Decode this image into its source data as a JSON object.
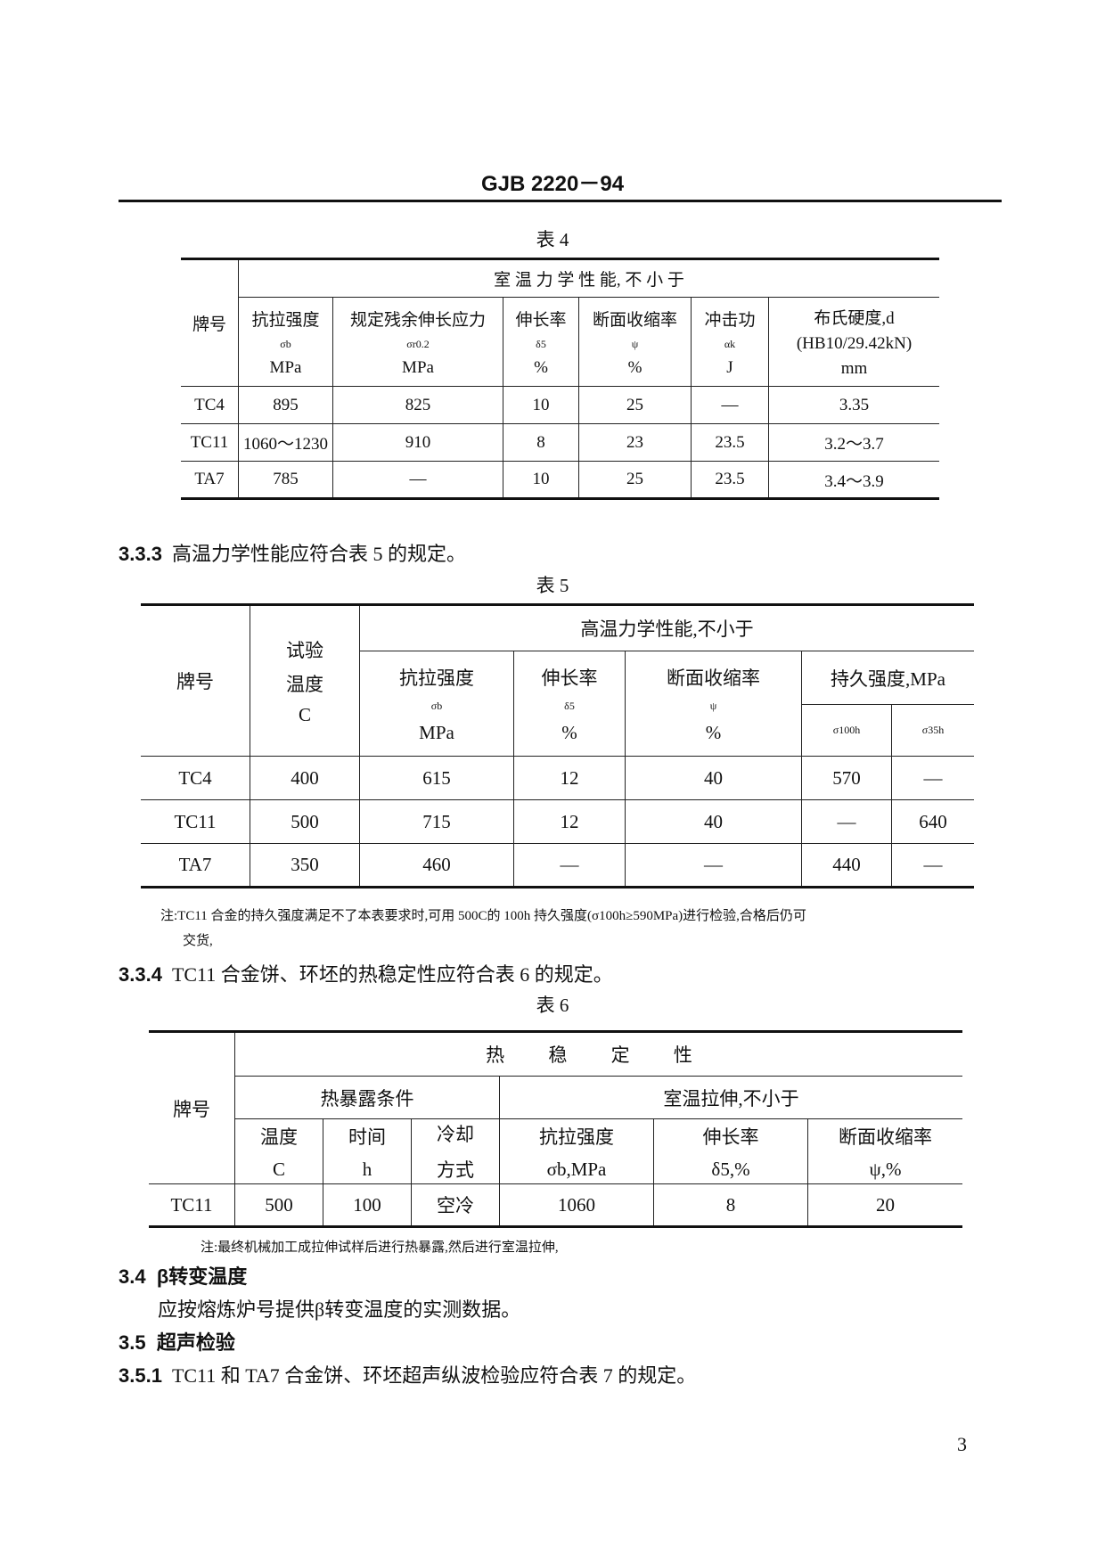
{
  "header": {
    "doc_code": "GJB 2220－94"
  },
  "table4": {
    "caption": "表 4",
    "col_grade": "牌号",
    "group": "室 温 力 学 性 能, 不 小 于",
    "columns": [
      {
        "name": "抗拉强度",
        "symbol": "σb",
        "unit": "MPa"
      },
      {
        "name": "规定残余伸长应力",
        "symbol": "σr0.2",
        "unit": "MPa"
      },
      {
        "name": "伸长率",
        "symbol": "δ5",
        "unit": "%"
      },
      {
        "name": "断面收缩率",
        "symbol": "ψ",
        "unit": "%"
      },
      {
        "name": "冲击功",
        "symbol": "αk",
        "unit": "J"
      },
      {
        "name": "布氏硬度,d",
        "symbol": "(HB10/29.42kN)",
        "unit": "mm"
      }
    ],
    "rows": [
      [
        "TC4",
        "895",
        "825",
        "10",
        "25",
        "—",
        "3.35"
      ],
      [
        "TC11",
        "1060～1230",
        "910",
        "8",
        "23",
        "23.5",
        "3.2～3.7"
      ],
      [
        "TA7",
        "785",
        "—",
        "10",
        "25",
        "23.5",
        "3.4～3.9"
      ]
    ]
  },
  "s333": {
    "num": "3.3.3",
    "text": "高温力学性能应符合表 5 的规定。"
  },
  "table5": {
    "caption": "表 5",
    "col_grade": "牌号",
    "col_temp": [
      "试验",
      "温度",
      "C"
    ],
    "group": "高温力学性能,不小于",
    "columns": [
      {
        "name": "抗拉强度",
        "symbol": "σb",
        "unit": "MPa"
      },
      {
        "name": "伸长率",
        "symbol": "δ5",
        "unit": "%"
      },
      {
        "name": "断面收缩率",
        "symbol": "ψ",
        "unit": "%"
      }
    ],
    "endurance": {
      "name": "持久强度,MPa",
      "sub": [
        "σ100h",
        "σ35h"
      ]
    },
    "rows": [
      [
        "TC4",
        "400",
        "615",
        "12",
        "40",
        "570",
        "—"
      ],
      [
        "TC11",
        "500",
        "715",
        "12",
        "40",
        "—",
        "640"
      ],
      [
        "TA7",
        "350",
        "460",
        "—",
        "—",
        "440",
        "—"
      ]
    ],
    "note_line1": "注:TC11 合金的持久强度满足不了本表要求时,可用 500C的 100h 持久强度(σ100h≥590MPa)进行检验,合格后仍可",
    "note_line2": "交货,"
  },
  "s334": {
    "num": "3.3.4",
    "text": "TC11 合金饼、环坯的热稳定性应符合表 6 的规定。"
  },
  "table6": {
    "caption": "表 6",
    "col_grade": "牌号",
    "group": "热 稳 定 性",
    "exposure": {
      "name": "热暴露条件",
      "cols": [
        [
          "温度",
          "C"
        ],
        [
          "时间",
          "h"
        ],
        [
          "冷却",
          "方式"
        ]
      ]
    },
    "tensile": {
      "name": "室温拉伸,不小于",
      "cols": [
        [
          "抗拉强度",
          "σb,MPa"
        ],
        [
          "伸长率",
          "δ5,%"
        ],
        [
          "断面收缩率",
          "ψ,%"
        ]
      ]
    },
    "rows": [
      [
        "TC11",
        "500",
        "100",
        "空冷",
        "1060",
        "8",
        "20"
      ]
    ],
    "note": "注:最终机械加工成拉伸试样后进行热暴露,然后进行室温拉伸,"
  },
  "s34": {
    "num": "3.4",
    "title": "β转变温度",
    "text": "应按熔炼炉号提供β转变温度的实测数据。"
  },
  "s35": {
    "num": "3.5",
    "title": "超声检验"
  },
  "s351": {
    "num": "3.5.1",
    "text": "TC11 和 TA7 合金饼、环坯超声纵波检验应符合表 7 的规定。"
  },
  "page_number": "3"
}
